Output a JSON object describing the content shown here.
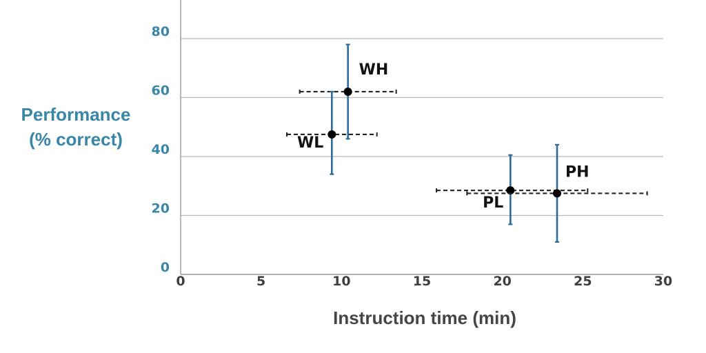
{
  "chart_data": {
    "type": "scatter",
    "title": "",
    "xlabel": "Instruction time (min)",
    "ylabel_lines": [
      "Performance",
      "(% correct)"
    ],
    "xlim": [
      0,
      30
    ],
    "ylim": [
      0,
      80
    ],
    "xticks": [
      "0",
      "5",
      "10",
      "15",
      "20",
      "25",
      "30"
    ],
    "yticks": [
      "0",
      "20",
      "40",
      "60",
      "80"
    ],
    "grid": "horizontal",
    "colors": {
      "grid": "#b7b7b7",
      "axis": "#9a9a9a",
      "y_error_bar": "#2c6a9a",
      "x_error_bar": "#222222",
      "point": "#000000"
    },
    "points": [
      {
        "label": "WH",
        "x": 10.4,
        "y": 62,
        "x_err": [
          7.4,
          13.4
        ],
        "y_err": [
          46,
          78
        ]
      },
      {
        "label": "WL",
        "x": 9.4,
        "y": 47.5,
        "x_err": [
          6.6,
          12.2
        ],
        "y_err": [
          34,
          62
        ]
      },
      {
        "label": "PL",
        "x": 20.5,
        "y": 28.5,
        "x_err": [
          15.9,
          25.3
        ],
        "y_err": [
          17,
          40.5
        ]
      },
      {
        "label": "PH",
        "x": 23.4,
        "y": 27.5,
        "x_err": [
          17.8,
          29.0
        ],
        "y_err": [
          11,
          44
        ]
      }
    ]
  }
}
